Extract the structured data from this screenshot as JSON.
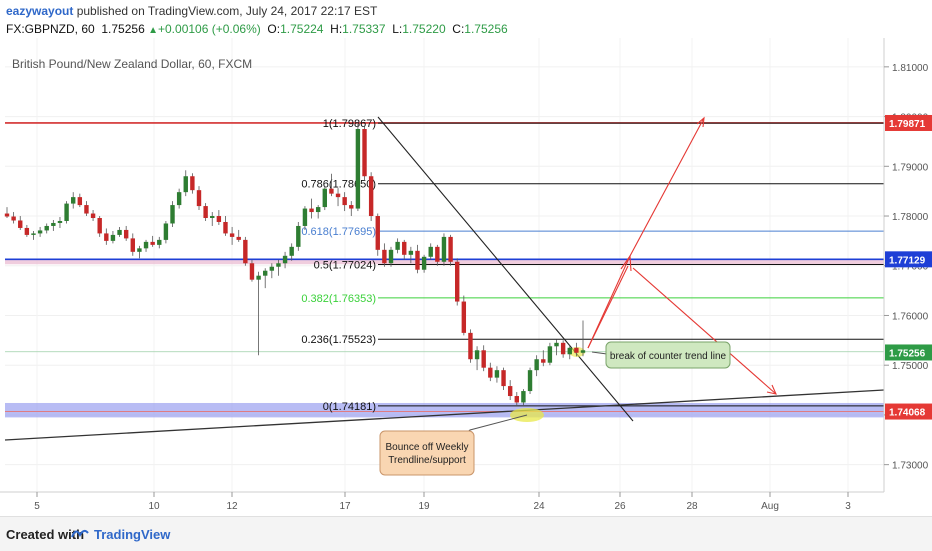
{
  "header": {
    "author": "eazywayout",
    "published": " published on TradingView.com, July 24, 2017 22:17 EST",
    "symbol": "FX:GBPNZD, 60",
    "last": "1.75256",
    "change": "+0.00106 (+0.06%)",
    "o_label": "O:",
    "o_value": "1.75224",
    "h_label": "H:",
    "h_value": "1.75337",
    "l_label": "L:",
    "l_value": "1.75220",
    "c_label": "C:",
    "c_value": "1.75256"
  },
  "footer": {
    "created": "Created with",
    "brand": "TradingView"
  },
  "colors": {
    "up": "#2e7d32",
    "down": "#c62828",
    "support_band": "#9aa0f0",
    "resistance_band": "#e9b8d0"
  },
  "chart_data": {
    "type": "candlestick",
    "title": "British Pound/New Zealand Dollar, 60, FXCM",
    "x_ticks": [
      "5",
      "10",
      "12",
      "17",
      "19",
      "24",
      "26",
      "28",
      "Aug",
      "3"
    ],
    "y_ticks": [
      "1.81000",
      "1.80000",
      "1.79000",
      "1.78000",
      "1.77000",
      "1.76000",
      "1.75000",
      "1.74000",
      "1.73000"
    ],
    "ylim": [
      1.7245,
      1.8158
    ],
    "price_labels": [
      {
        "value": 1.79871,
        "text": "1.79871",
        "color": "#e53935"
      },
      {
        "value": 1.77129,
        "text": "1.77129",
        "color": "#1e3fd6"
      },
      {
        "value": 1.75256,
        "text": "1.75256",
        "color": "#2e9b46"
      },
      {
        "value": 1.74068,
        "text": "1.74068",
        "color": "#e53935"
      }
    ],
    "fib_levels": [
      {
        "label": "1(1.79867)",
        "value": 1.79867,
        "color": "#111111"
      },
      {
        "label": "0.786(1.78650)",
        "value": 1.7865,
        "color": "#111111"
      },
      {
        "label": "0.618(1.77695)",
        "value": 1.77695,
        "color": "#4a7fd0"
      },
      {
        "label": "0.5(1.77024)",
        "value": 1.77024,
        "color": "#111111"
      },
      {
        "label": "0.382(1.76353)",
        "value": 1.76353,
        "color": "#3bd13b"
      },
      {
        "label": "0.236(1.75523)",
        "value": 1.75523,
        "color": "#111111"
      },
      {
        "label": "0(1.74181)",
        "value": 1.74181,
        "color": "#111111"
      }
    ],
    "horizontal_lines": [
      {
        "value": 1.79871,
        "color": "#d32f2f"
      },
      {
        "value": 1.77129,
        "color": "#1e3fd6"
      }
    ],
    "bands": [
      {
        "from": 1.7395,
        "to": 1.7424,
        "color": "#9aa0f0"
      },
      {
        "from": 1.7703,
        "to": 1.7712,
        "color": "#e9b8d0"
      }
    ],
    "annotations": [
      {
        "text": [
          "break of counter trend line"
        ]
      },
      {
        "text": [
          "Bounce off Weekly",
          "Trendline/support"
        ]
      }
    ],
    "candles": [
      [
        1.7805,
        1.7818,
        1.7796,
        1.7799
      ],
      [
        1.7799,
        1.7808,
        1.7785,
        1.7791
      ],
      [
        1.7791,
        1.78,
        1.7772,
        1.7776
      ],
      [
        1.7776,
        1.7782,
        1.7758,
        1.7762
      ],
      [
        1.7762,
        1.777,
        1.7752,
        1.7765
      ],
      [
        1.7765,
        1.7778,
        1.7758,
        1.7771
      ],
      [
        1.7771,
        1.7785,
        1.7765,
        1.778
      ],
      [
        1.778,
        1.7792,
        1.777,
        1.7786
      ],
      [
        1.7786,
        1.7798,
        1.7776,
        1.779
      ],
      [
        1.779,
        1.783,
        1.7785,
        1.7825
      ],
      [
        1.7825,
        1.7848,
        1.7815,
        1.7838
      ],
      [
        1.7838,
        1.7845,
        1.7818,
        1.7822
      ],
      [
        1.7822,
        1.783,
        1.78,
        1.7805
      ],
      [
        1.7805,
        1.7812,
        1.779,
        1.7796
      ],
      [
        1.7796,
        1.78,
        1.7758,
        1.7765
      ],
      [
        1.7765,
        1.7775,
        1.7742,
        1.775
      ],
      [
        1.775,
        1.777,
        1.7745,
        1.7762
      ],
      [
        1.7762,
        1.7778,
        1.7758,
        1.7772
      ],
      [
        1.7772,
        1.778,
        1.775,
        1.7755
      ],
      [
        1.7755,
        1.7765,
        1.772,
        1.7728
      ],
      [
        1.7728,
        1.774,
        1.7715,
        1.7735
      ],
      [
        1.7735,
        1.7752,
        1.7728,
        1.7748
      ],
      [
        1.7748,
        1.776,
        1.7738,
        1.7742
      ],
      [
        1.7742,
        1.7758,
        1.7735,
        1.7752
      ],
      [
        1.7752,
        1.779,
        1.7745,
        1.7785
      ],
      [
        1.7785,
        1.783,
        1.7778,
        1.7822
      ],
      [
        1.7822,
        1.7855,
        1.7815,
        1.7848
      ],
      [
        1.7848,
        1.7892,
        1.784,
        1.788
      ],
      [
        1.788,
        1.7886,
        1.7845,
        1.7852
      ],
      [
        1.7852,
        1.786,
        1.7812,
        1.782
      ],
      [
        1.782,
        1.7826,
        1.779,
        1.7796
      ],
      [
        1.7796,
        1.7808,
        1.778,
        1.78
      ],
      [
        1.78,
        1.7812,
        1.7782,
        1.7788
      ],
      [
        1.7788,
        1.78,
        1.776,
        1.7765
      ],
      [
        1.7765,
        1.7778,
        1.7742,
        1.7758
      ],
      [
        1.7758,
        1.7772,
        1.7748,
        1.7752
      ],
      [
        1.7752,
        1.7758,
        1.77,
        1.7705
      ],
      [
        1.7705,
        1.7712,
        1.7668,
        1.7672
      ],
      [
        1.7672,
        1.7688,
        1.752,
        1.768
      ],
      [
        1.768,
        1.7695,
        1.7655,
        1.769
      ],
      [
        1.769,
        1.7705,
        1.7675,
        1.7698
      ],
      [
        1.7698,
        1.7712,
        1.768,
        1.7705
      ],
      [
        1.7705,
        1.7728,
        1.7695,
        1.772
      ],
      [
        1.772,
        1.7745,
        1.771,
        1.7738
      ],
      [
        1.7738,
        1.7788,
        1.773,
        1.778
      ],
      [
        1.778,
        1.782,
        1.7772,
        1.7815
      ],
      [
        1.7815,
        1.7835,
        1.7795,
        1.7808
      ],
      [
        1.7808,
        1.7822,
        1.7795,
        1.7818
      ],
      [
        1.7818,
        1.786,
        1.7812,
        1.7855
      ],
      [
        1.7855,
        1.7885,
        1.784,
        1.7845
      ],
      [
        1.7845,
        1.7856,
        1.782,
        1.7838
      ],
      [
        1.7838,
        1.7848,
        1.781,
        1.7822
      ],
      [
        1.7822,
        1.783,
        1.78,
        1.7815
      ],
      [
        1.7815,
        1.7985,
        1.781,
        1.7975
      ],
      [
        1.7975,
        1.798,
        1.7872,
        1.788
      ],
      [
        1.788,
        1.7888,
        1.779,
        1.78
      ],
      [
        1.78,
        1.7805,
        1.772,
        1.7732
      ],
      [
        1.7732,
        1.7745,
        1.7698,
        1.7705
      ],
      [
        1.7705,
        1.7738,
        1.7698,
        1.7732
      ],
      [
        1.7732,
        1.7755,
        1.7725,
        1.7748
      ],
      [
        1.7748,
        1.7752,
        1.7712,
        1.7722
      ],
      [
        1.7722,
        1.7738,
        1.7705,
        1.773
      ],
      [
        1.773,
        1.7742,
        1.7685,
        1.7692
      ],
      [
        1.7692,
        1.7722,
        1.7686,
        1.7718
      ],
      [
        1.7718,
        1.7745,
        1.7712,
        1.7738
      ],
      [
        1.7738,
        1.7742,
        1.77,
        1.7708
      ],
      [
        1.7708,
        1.7765,
        1.77,
        1.7758
      ],
      [
        1.7758,
        1.7762,
        1.77,
        1.7708
      ],
      [
        1.7708,
        1.7715,
        1.762,
        1.7628
      ],
      [
        1.7628,
        1.764,
        1.756,
        1.7565
      ],
      [
        1.7565,
        1.7572,
        1.7505,
        1.7512
      ],
      [
        1.7512,
        1.7538,
        1.749,
        1.753
      ],
      [
        1.753,
        1.754,
        1.7488,
        1.7495
      ],
      [
        1.7495,
        1.7505,
        1.7468,
        1.7475
      ],
      [
        1.7475,
        1.7498,
        1.7465,
        1.749
      ],
      [
        1.749,
        1.7495,
        1.745,
        1.7458
      ],
      [
        1.7458,
        1.747,
        1.743,
        1.7438
      ],
      [
        1.7438,
        1.7446,
        1.7418,
        1.7425
      ],
      [
        1.7425,
        1.7452,
        1.742,
        1.7448
      ],
      [
        1.7448,
        1.7495,
        1.7442,
        1.749
      ],
      [
        1.749,
        1.752,
        1.7478,
        1.7512
      ],
      [
        1.7512,
        1.753,
        1.7498,
        1.7505
      ],
      [
        1.7505,
        1.7545,
        1.75,
        1.7538
      ],
      [
        1.7538,
        1.7552,
        1.752,
        1.7545
      ],
      [
        1.7545,
        1.755,
        1.7515,
        1.7522
      ],
      [
        1.7522,
        1.754,
        1.7512,
        1.7535
      ],
      [
        1.7535,
        1.7545,
        1.7518,
        1.7525
      ],
      [
        1.7525,
        1.759,
        1.7518,
        1.753
      ]
    ]
  }
}
